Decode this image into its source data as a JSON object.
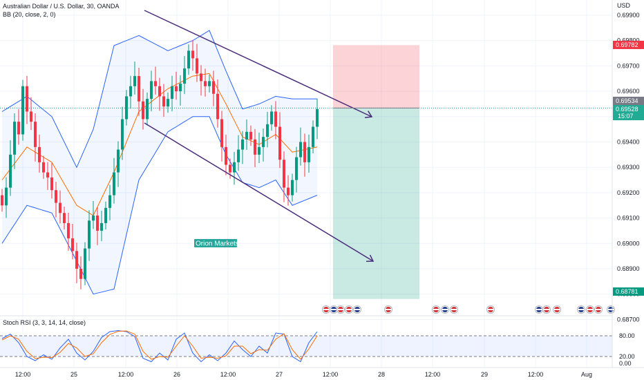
{
  "header": {
    "symbol_title": "Australian Dollar / U.S. Dollar, 30, OANDA",
    "bb_legend": "BB (20, close, 2, 0)"
  },
  "price_axis": {
    "currency": "USD",
    "labels": [
      "0.69900",
      "0.69800",
      "0.69700",
      "0.69600",
      "0.69400",
      "0.69300",
      "0.69200",
      "0.69100",
      "0.69000",
      "0.68900",
      "0.68800",
      "0.68700"
    ]
  },
  "price_tags": {
    "stop": {
      "value": "0.69782",
      "color": "#f23645"
    },
    "last_close": {
      "value": "0.69534",
      "color": "#787b86"
    },
    "current": {
      "value": "0.69528",
      "countdown": "15:07",
      "color": "#22ab94"
    },
    "target": {
      "value": "0.68781",
      "color": "#089981"
    }
  },
  "stoch_rsi": {
    "legend": "Stoch RSI (3, 3, 14, 14, close)",
    "axis_labels": [
      "80.00",
      "20.00",
      "0.00"
    ],
    "upper_band": 80,
    "lower_band": 20,
    "k_color": "#2962ff",
    "d_color": "#ff6d00"
  },
  "time_axis": {
    "labels": [
      "12:00",
      "25",
      "12:00",
      "26",
      "12:00",
      "27",
      "12:00",
      "28",
      "12:00",
      "29",
      "12:00",
      "Aug"
    ]
  },
  "watermark": {
    "text": "Orion Markets",
    "color": "#26a69a"
  },
  "colors": {
    "up": "#089981",
    "down": "#f23645",
    "bb_band": "#2962ff",
    "bb_basis": "#ff6d00",
    "channel": "#4a2c7a",
    "risk_zone": "#f23645",
    "reward_zone": "#089981"
  },
  "chart_data": {
    "type": "candlestick",
    "x": [
      "24 06:00",
      "24 12:00",
      "25 00:00",
      "25 12:00",
      "26 00:00",
      "26 12:00",
      "27 00:00",
      "27 12:00",
      "28 00:00",
      "28 12:00",
      "29 00:00",
      "29 12:00",
      "Aug"
    ],
    "ylim": [
      0.687,
      0.6995
    ],
    "close_path": [
      [
        0,
        0.6915
      ],
      [
        1,
        0.6922
      ],
      [
        2,
        0.6935
      ],
      [
        3,
        0.6948
      ],
      [
        4,
        0.6943
      ],
      [
        5,
        0.6962
      ],
      [
        6,
        0.6952
      ],
      [
        7,
        0.6948
      ],
      [
        8,
        0.6938
      ],
      [
        9,
        0.6932
      ],
      [
        10,
        0.6928
      ],
      [
        11,
        0.6926
      ],
      [
        12,
        0.6921
      ],
      [
        13,
        0.6916
      ],
      [
        14,
        0.6912
      ],
      [
        15,
        0.6908
      ],
      [
        16,
        0.6902
      ],
      [
        17,
        0.6897
      ],
      [
        18,
        0.689
      ],
      [
        19,
        0.6886
      ],
      [
        20,
        0.6898
      ],
      [
        21,
        0.6909
      ],
      [
        22,
        0.6911
      ],
      [
        23,
        0.6905
      ],
      [
        24,
        0.6908
      ],
      [
        25,
        0.6914
      ],
      [
        26,
        0.6919
      ],
      [
        27,
        0.6928
      ],
      [
        28,
        0.6937
      ],
      [
        29,
        0.6949
      ],
      [
        30,
        0.6958
      ],
      [
        31,
        0.6962
      ],
      [
        32,
        0.6966
      ],
      [
        33,
        0.6956
      ],
      [
        34,
        0.6949
      ],
      [
        35,
        0.6957
      ],
      [
        36,
        0.6964
      ],
      [
        37,
        0.6962
      ],
      [
        38,
        0.6958
      ],
      [
        39,
        0.6954
      ],
      [
        40,
        0.6957
      ],
      [
        41,
        0.6962
      ],
      [
        42,
        0.696
      ],
      [
        43,
        0.6963
      ],
      [
        44,
        0.6969
      ],
      [
        45,
        0.6976
      ],
      [
        46,
        0.6973
      ],
      [
        47,
        0.6967
      ],
      [
        48,
        0.6964
      ],
      [
        49,
        0.6962
      ],
      [
        50,
        0.6964
      ],
      [
        51,
        0.6959
      ],
      [
        52,
        0.6949
      ],
      [
        53,
        0.6938
      ],
      [
        54,
        0.6931
      ],
      [
        55,
        0.6928
      ],
      [
        56,
        0.6932
      ],
      [
        57,
        0.6937
      ],
      [
        58,
        0.6941
      ],
      [
        59,
        0.6944
      ],
      [
        60,
        0.6941
      ],
      [
        61,
        0.6935
      ],
      [
        62,
        0.6938
      ],
      [
        63,
        0.6942
      ],
      [
        64,
        0.6947
      ],
      [
        65,
        0.6952
      ],
      [
        66,
        0.6946
      ],
      [
        67,
        0.6933
      ],
      [
        68,
        0.6922
      ],
      [
        69,
        0.6919
      ],
      [
        70,
        0.6925
      ],
      [
        71,
        0.6934
      ],
      [
        72,
        0.694
      ],
      [
        73,
        0.6932
      ],
      [
        74,
        0.6938
      ],
      [
        75,
        0.6946
      ],
      [
        76,
        0.6953
      ]
    ],
    "bollinger": {
      "upper": [
        [
          0,
          0.6952
        ],
        [
          6,
          0.6958
        ],
        [
          12,
          0.695
        ],
        [
          18,
          0.693
        ],
        [
          22,
          0.6945
        ],
        [
          27,
          0.6978
        ],
        [
          33,
          0.6982
        ],
        [
          40,
          0.6976
        ],
        [
          46,
          0.698
        ],
        [
          50,
          0.6984
        ],
        [
          54,
          0.6968
        ],
        [
          58,
          0.6953
        ],
        [
          62,
          0.6955
        ],
        [
          66,
          0.6958
        ],
        [
          70,
          0.6957
        ],
        [
          76,
          0.6957
        ]
      ],
      "basis": [
        [
          0,
          0.6925
        ],
        [
          6,
          0.6938
        ],
        [
          12,
          0.6932
        ],
        [
          18,
          0.6915
        ],
        [
          22,
          0.6911
        ],
        [
          27,
          0.6928
        ],
        [
          33,
          0.6952
        ],
        [
          40,
          0.6961
        ],
        [
          46,
          0.6966
        ],
        [
          50,
          0.6967
        ],
        [
          54,
          0.6955
        ],
        [
          58,
          0.6942
        ],
        [
          62,
          0.6939
        ],
        [
          66,
          0.6943
        ],
        [
          70,
          0.6936
        ],
        [
          76,
          0.6938
        ]
      ],
      "lower": [
        [
          0,
          0.69
        ],
        [
          6,
          0.6915
        ],
        [
          12,
          0.6912
        ],
        [
          18,
          0.6893
        ],
        [
          22,
          0.688
        ],
        [
          27,
          0.6882
        ],
        [
          33,
          0.6925
        ],
        [
          40,
          0.6944
        ],
        [
          46,
          0.695
        ],
        [
          50,
          0.695
        ],
        [
          54,
          0.6935
        ],
        [
          58,
          0.6924
        ],
        [
          62,
          0.6922
        ],
        [
          66,
          0.6925
        ],
        [
          70,
          0.6915
        ],
        [
          76,
          0.6919
        ]
      ]
    },
    "channel": {
      "upper_line": {
        "from": [
          "24 18:00",
          0.6993
        ],
        "to": [
          "27 15:00",
          0.6953
        ]
      },
      "lower_line": {
        "from": [
          "25 19:00",
          0.6941
        ],
        "to": [
          "28 06:00",
          0.6895
        ]
      }
    },
    "position": {
      "entry": 0.69534,
      "stop": 0.69782,
      "target": 0.68781
    },
    "stoch_rsi": {
      "k": [
        [
          0,
          72
        ],
        [
          2,
          85
        ],
        [
          4,
          60
        ],
        [
          6,
          20
        ],
        [
          8,
          8
        ],
        [
          10,
          25
        ],
        [
          12,
          12
        ],
        [
          14,
          45
        ],
        [
          16,
          70
        ],
        [
          18,
          30
        ],
        [
          20,
          10
        ],
        [
          22,
          35
        ],
        [
          24,
          75
        ],
        [
          26,
          92
        ],
        [
          28,
          95
        ],
        [
          30,
          92
        ],
        [
          32,
          78
        ],
        [
          34,
          15
        ],
        [
          36,
          5
        ],
        [
          38,
          30
        ],
        [
          40,
          10
        ],
        [
          42,
          70
        ],
        [
          44,
          88
        ],
        [
          46,
          30
        ],
        [
          48,
          5
        ],
        [
          50,
          25
        ],
        [
          52,
          8
        ],
        [
          54,
          30
        ],
        [
          56,
          65
        ],
        [
          58,
          40
        ],
        [
          60,
          20
        ],
        [
          62,
          50
        ],
        [
          64,
          30
        ],
        [
          66,
          88
        ],
        [
          68,
          85
        ],
        [
          70,
          20
        ],
        [
          72,
          5
        ],
        [
          74,
          60
        ],
        [
          76,
          92
        ]
      ],
      "d": [
        [
          0,
          68
        ],
        [
          2,
          80
        ],
        [
          4,
          70
        ],
        [
          6,
          35
        ],
        [
          8,
          14
        ],
        [
          10,
          18
        ],
        [
          12,
          17
        ],
        [
          14,
          32
        ],
        [
          16,
          58
        ],
        [
          18,
          45
        ],
        [
          20,
          20
        ],
        [
          22,
          28
        ],
        [
          24,
          60
        ],
        [
          26,
          84
        ],
        [
          28,
          93
        ],
        [
          30,
          94
        ],
        [
          32,
          85
        ],
        [
          34,
          35
        ],
        [
          36,
          12
        ],
        [
          38,
          20
        ],
        [
          40,
          18
        ],
        [
          42,
          50
        ],
        [
          44,
          80
        ],
        [
          46,
          50
        ],
        [
          48,
          15
        ],
        [
          50,
          18
        ],
        [
          52,
          15
        ],
        [
          54,
          22
        ],
        [
          56,
          50
        ],
        [
          58,
          50
        ],
        [
          60,
          28
        ],
        [
          62,
          40
        ],
        [
          64,
          38
        ],
        [
          66,
          70
        ],
        [
          68,
          86
        ],
        [
          70,
          40
        ],
        [
          72,
          12
        ],
        [
          74,
          42
        ],
        [
          76,
          80
        ]
      ]
    }
  }
}
